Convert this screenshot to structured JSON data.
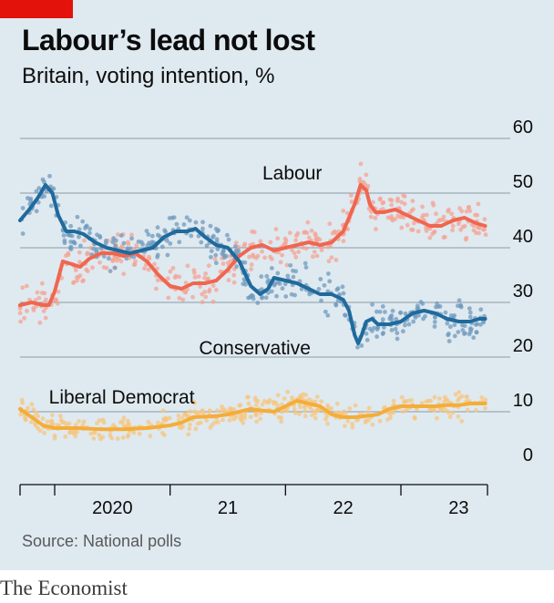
{
  "header": {
    "title": "Labour’s lead not lost",
    "subtitle": "Britain, voting intention, %"
  },
  "footer": {
    "source": "Source: National polls",
    "brand": "The Economist"
  },
  "colors": {
    "labour": "#ef6650",
    "conservative": "#1f6a9c",
    "libdem": "#f4ad3a",
    "labour_dots": "#f4a393",
    "conservative_dots": "#6f99bd",
    "libdem_dots": "#f6c67f",
    "grid": "#8a9aa6",
    "brand_tag": "#e3120b"
  },
  "chart_data": {
    "type": "line",
    "title": "Labour’s lead not lost",
    "subtitle": "Britain, voting intention, %",
    "ylim": [
      0,
      60
    ],
    "y_ticks": [
      0,
      10,
      20,
      30,
      40,
      50,
      60
    ],
    "xlim": [
      2019.7,
      2023.75
    ],
    "x_ticks": [
      {
        "value": 2020.5,
        "label": "2020"
      },
      {
        "value": 2021.5,
        "label": "21"
      },
      {
        "value": 2022.5,
        "label": "22"
      },
      {
        "value": 2023.5,
        "label": "23"
      }
    ],
    "x_boundaries": [
      2020,
      2021,
      2022,
      2023,
      2023.75
    ],
    "grid": true,
    "y_axis_position": "right",
    "series": [
      {
        "name": "Labour",
        "key": "labour",
        "x": [
          2019.7,
          2019.8,
          2019.9,
          2019.95,
          2020.0,
          2020.07,
          2020.15,
          2020.22,
          2020.3,
          2020.4,
          2020.5,
          2020.6,
          2020.7,
          2020.8,
          2020.9,
          2021.0,
          2021.1,
          2021.2,
          2021.3,
          2021.4,
          2021.5,
          2021.6,
          2021.7,
          2021.8,
          2021.9,
          2022.0,
          2022.1,
          2022.2,
          2022.3,
          2022.4,
          2022.5,
          2022.6,
          2022.65,
          2022.7,
          2022.73,
          2022.78,
          2022.85,
          2022.95,
          2023.05,
          2023.15,
          2023.25,
          2023.35,
          2023.45,
          2023.55,
          2023.65,
          2023.73
        ],
        "y": [
          29.5,
          30,
          29.5,
          29.5,
          32,
          37.5,
          37,
          36.5,
          38,
          39,
          39,
          38.5,
          39,
          37.5,
          35,
          33,
          32.5,
          33.5,
          33.5,
          34,
          36,
          38.5,
          40,
          40.5,
          39.5,
          40,
          40.5,
          41,
          40.5,
          41,
          43,
          48,
          51.5,
          50.5,
          48,
          46.5,
          46.5,
          47,
          46,
          45,
          44,
          44,
          45,
          45.5,
          44.5,
          44
        ]
      },
      {
        "name": "Conservative",
        "key": "conservative",
        "x": [
          2019.7,
          2019.78,
          2019.85,
          2019.92,
          2019.98,
          2020.03,
          2020.1,
          2020.17,
          2020.25,
          2020.35,
          2020.45,
          2020.55,
          2020.65,
          2020.75,
          2020.85,
          2020.95,
          2021.05,
          2021.15,
          2021.22,
          2021.3,
          2021.4,
          2021.5,
          2021.6,
          2021.7,
          2021.78,
          2021.85,
          2021.9,
          2022.0,
          2022.1,
          2022.2,
          2022.3,
          2022.4,
          2022.5,
          2022.55,
          2022.6,
          2022.63,
          2022.66,
          2022.7,
          2022.75,
          2022.8,
          2022.9,
          2023.0,
          2023.1,
          2023.2,
          2023.3,
          2023.4,
          2023.5,
          2023.6,
          2023.68,
          2023.73
        ],
        "y": [
          45,
          47,
          49,
          51.5,
          50,
          46,
          43,
          43,
          42.5,
          41,
          40,
          39.5,
          39,
          39.5,
          40,
          42,
          43,
          43,
          43.5,
          42,
          40.5,
          40,
          37.5,
          33,
          31.5,
          32.5,
          34.5,
          34,
          33.5,
          32.5,
          31.5,
          31.5,
          30.5,
          28.5,
          24,
          22.5,
          24,
          26.5,
          27,
          26,
          26,
          26.5,
          28,
          28.5,
          28,
          27,
          26.5,
          26.5,
          27,
          27
        ]
      },
      {
        "name": "Liberal Democrat",
        "key": "libdem",
        "x": [
          2019.7,
          2019.8,
          2019.9,
          2020.0,
          2020.2,
          2020.4,
          2020.6,
          2020.8,
          2021.0,
          2021.1,
          2021.2,
          2021.4,
          2021.5,
          2021.6,
          2021.7,
          2021.8,
          2021.9,
          2022.0,
          2022.1,
          2022.2,
          2022.3,
          2022.4,
          2022.5,
          2022.6,
          2022.7,
          2022.8,
          2022.9,
          2023.0,
          2023.1,
          2023.2,
          2023.3,
          2023.4,
          2023.5,
          2023.6,
          2023.73
        ],
        "y": [
          10.5,
          9,
          7.5,
          7,
          7,
          6.8,
          6.8,
          7,
          7.5,
          8,
          9,
          9.2,
          9.5,
          10,
          10.5,
          10.2,
          10,
          11,
          12,
          11.5,
          11,
          9.5,
          9,
          9,
          9.2,
          9.5,
          10.5,
          11,
          11,
          11,
          11,
          11.2,
          11.2,
          11.5,
          11.5
        ]
      }
    ],
    "annotations": [
      {
        "text": "Labour",
        "x": 2021.8,
        "y": 52.5
      },
      {
        "text": "Conservative",
        "x": 2021.25,
        "y": 20.5
      },
      {
        "text": "Liberal Democrat",
        "x": 2019.95,
        "y": 11.5
      }
    ]
  }
}
